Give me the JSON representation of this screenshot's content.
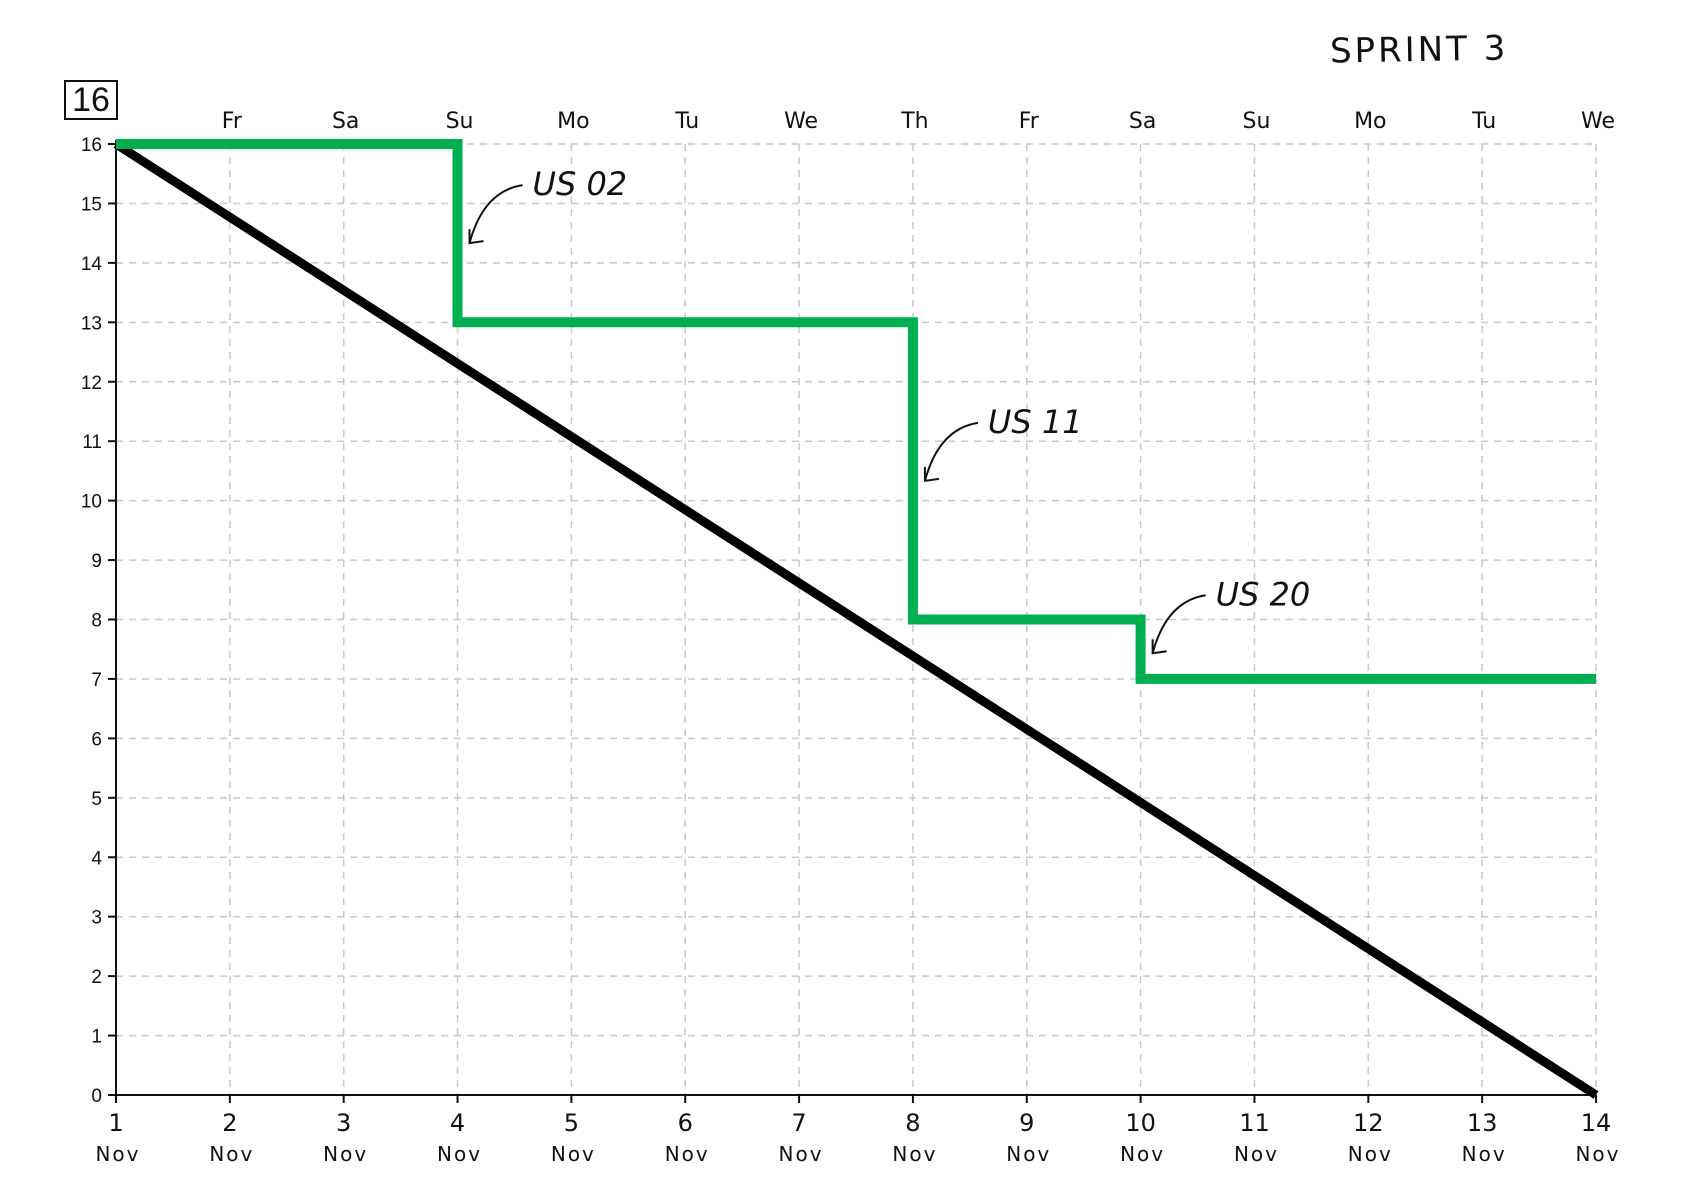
{
  "title": "SPRINT 3",
  "total_points": "16",
  "chart_data": {
    "type": "line",
    "title": "SPRINT 3",
    "xlabel": "",
    "ylabel": "",
    "x_day_numbers": [
      "1",
      "2",
      "3",
      "4",
      "5",
      "6",
      "7",
      "8",
      "9",
      "10",
      "11",
      "12",
      "13",
      "14"
    ],
    "x_month_label": "Nov",
    "x_weekdays": [
      "",
      "Fr",
      "Sa",
      "Su",
      "Mo",
      "Tu",
      "We",
      "Th",
      "Fr",
      "Sa",
      "Su",
      "Mo",
      "Tu",
      "We"
    ],
    "xlim": [
      1,
      14
    ],
    "ylim": [
      0,
      16
    ],
    "y_ticks": [
      0,
      1,
      2,
      3,
      4,
      5,
      6,
      7,
      8,
      9,
      10,
      11,
      12,
      13,
      14,
      15,
      16
    ],
    "grid": true,
    "series": [
      {
        "color": "#000000",
        "style": "ideal",
        "points": [
          [
            1,
            16
          ],
          [
            14,
            0
          ]
        ]
      },
      {
        "color": "#00b050",
        "style": "step",
        "points": [
          [
            1,
            16
          ],
          [
            4,
            16
          ],
          [
            4,
            13
          ],
          [
            8,
            13
          ],
          [
            8,
            8
          ],
          [
            10,
            8
          ],
          [
            10,
            7
          ],
          [
            14,
            7
          ]
        ]
      }
    ],
    "annotations": [
      {
        "text": "US 02",
        "x": 4,
        "y": 14.5
      },
      {
        "text": "US 11",
        "x": 8,
        "y": 10.5
      },
      {
        "text": "US 20",
        "x": 10,
        "y": 7.6
      }
    ]
  }
}
